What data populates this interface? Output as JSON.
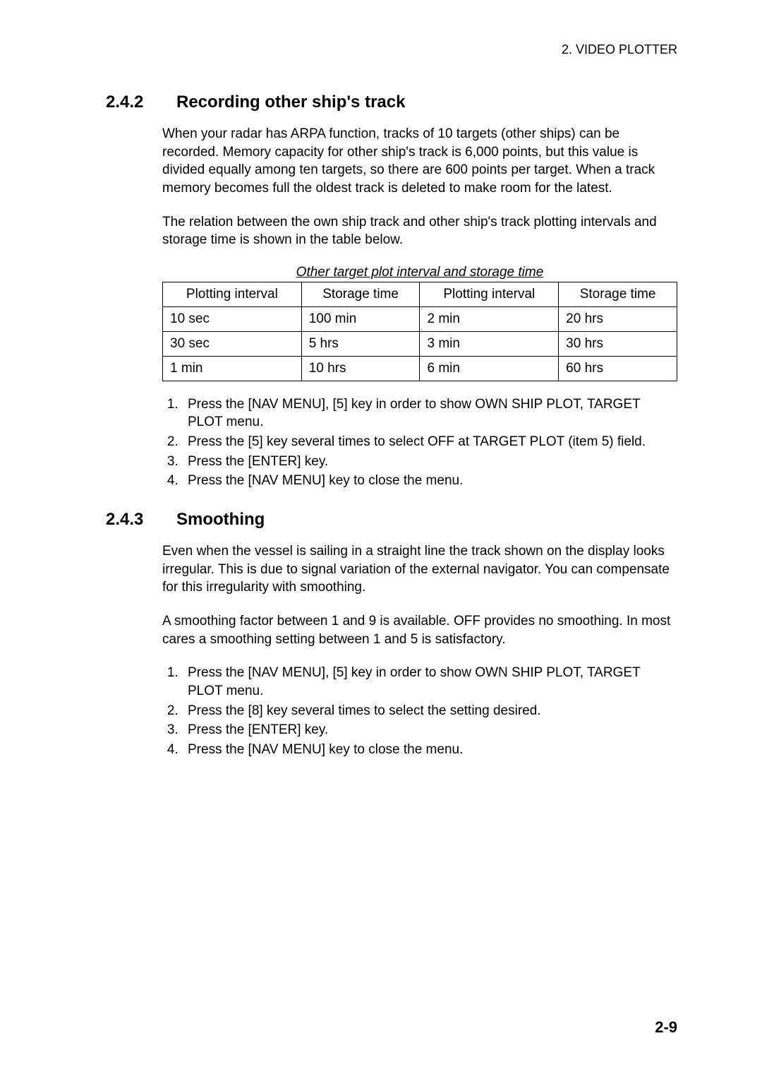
{
  "header": {
    "chapter_label": "2. VIDEO PLOTTER"
  },
  "section_242": {
    "number": "2.4.2",
    "title": "Recording other ship's track",
    "para1": "When your radar has ARPA function, tracks of 10 targets (other ships) can be recorded. Memory capacity for other ship's track is 6,000 points, but this value is divided equally among ten targets, so there are 600 points per target. When a track memory becomes full the oldest track is deleted to make room for the latest.",
    "para2": "The relation between the own ship track and other ship's track plotting intervals and storage time is shown in the table below.",
    "table": {
      "caption": "Other target plot interval and storage time",
      "columns": [
        "Plotting interval",
        "Storage time",
        "Plotting interval",
        "Storage time"
      ],
      "rows": [
        [
          "10 sec",
          "100 min",
          "2 min",
          "20 hrs"
        ],
        [
          "30 sec",
          "5 hrs",
          "3 min",
          "30 hrs"
        ],
        [
          "1 min",
          "10 hrs",
          "6 min",
          "60 hrs"
        ]
      ]
    },
    "steps": [
      "Press the [NAV MENU], [5] key in order to show OWN SHIP PLOT, TARGET PLOT menu.",
      "Press the [5] key several times to select OFF at TARGET PLOT (item 5) field.",
      "Press the [ENTER] key.",
      "Press the [NAV MENU] key to close the menu."
    ]
  },
  "section_243": {
    "number": "2.4.3",
    "title": "Smoothing",
    "para1": "Even when the vessel is sailing in a straight line the track shown on the display looks irregular. This is due to signal variation of the external navigator. You can compensate for this irregularity with smoothing.",
    "para2": "A smoothing factor between 1 and 9 is available. OFF provides no smoothing. In most cares a smoothing setting between 1 and 5 is satisfactory.",
    "steps": [
      "Press the [NAV MENU], [5] key in order to show OWN SHIP PLOT, TARGET PLOT menu.",
      "Press the [8] key several times to select the setting desired.",
      "Press the [ENTER] key.",
      "Press the [NAV MENU] key to close the menu."
    ]
  },
  "footer": {
    "page_number": "2-9"
  }
}
